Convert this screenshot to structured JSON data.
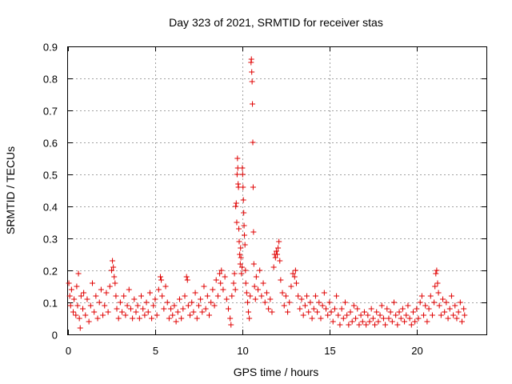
{
  "chart_data": {
    "type": "scatter",
    "title": "Day 323 of 2021, SRMTID for receiver stas",
    "xlabel": "GPS time / hours",
    "ylabel": "SRMTID / TECUs",
    "xlim": [
      0,
      24
    ],
    "ylim": [
      0,
      0.9
    ],
    "xticks": [
      0,
      5,
      10,
      15,
      20
    ],
    "yticks": [
      0,
      0.1,
      0.2,
      0.3,
      0.4,
      0.5,
      0.6,
      0.7,
      0.8,
      0.9
    ],
    "grid": true,
    "marker": "+",
    "color": "#e00000",
    "series": [
      {
        "name": "SRMTID",
        "points": [
          [
            0.05,
            0.16
          ],
          [
            0.1,
            0.12
          ],
          [
            0.15,
            0.09
          ],
          [
            0.2,
            0.14
          ],
          [
            0.3,
            0.07
          ],
          [
            0.35,
            0.11
          ],
          [
            0.45,
            0.06
          ],
          [
            0.5,
            0.15
          ],
          [
            0.55,
            0.09
          ],
          [
            0.6,
            0.19
          ],
          [
            0.65,
            0.05
          ],
          [
            0.7,
            0.02
          ],
          [
            0.75,
            0.12
          ],
          [
            0.85,
            0.08
          ],
          [
            0.9,
            0.13
          ],
          [
            1.0,
            0.06
          ],
          [
            1.1,
            0.11
          ],
          [
            1.2,
            0.04
          ],
          [
            1.3,
            0.09
          ],
          [
            1.4,
            0.16
          ],
          [
            1.5,
            0.07
          ],
          [
            1.6,
            0.12
          ],
          [
            1.7,
            0.05
          ],
          [
            1.8,
            0.1
          ],
          [
            1.9,
            0.14
          ],
          [
            2.0,
            0.06
          ],
          [
            2.1,
            0.09
          ],
          [
            2.2,
            0.13
          ],
          [
            2.3,
            0.07
          ],
          [
            2.4,
            0.15
          ],
          [
            2.5,
            0.2
          ],
          [
            2.55,
            0.23
          ],
          [
            2.6,
            0.21
          ],
          [
            2.65,
            0.18
          ],
          [
            2.7,
            0.16
          ],
          [
            2.75,
            0.12
          ],
          [
            2.8,
            0.08
          ],
          [
            2.9,
            0.05
          ],
          [
            3.0,
            0.1
          ],
          [
            3.1,
            0.07
          ],
          [
            3.2,
            0.12
          ],
          [
            3.3,
            0.06
          ],
          [
            3.4,
            0.09
          ],
          [
            3.5,
            0.14
          ],
          [
            3.6,
            0.08
          ],
          [
            3.7,
            0.05
          ],
          [
            3.8,
            0.11
          ],
          [
            3.9,
            0.07
          ],
          [
            4.0,
            0.09
          ],
          [
            4.1,
            0.05
          ],
          [
            4.2,
            0.12
          ],
          [
            4.3,
            0.08
          ],
          [
            4.4,
            0.06
          ],
          [
            4.5,
            0.1
          ],
          [
            4.6,
            0.07
          ],
          [
            4.7,
            0.13
          ],
          [
            4.8,
            0.05
          ],
          [
            4.9,
            0.09
          ],
          [
            5.0,
            0.11
          ],
          [
            5.1,
            0.06
          ],
          [
            5.2,
            0.14
          ],
          [
            5.3,
            0.18
          ],
          [
            5.35,
            0.17
          ],
          [
            5.4,
            0.12
          ],
          [
            5.5,
            0.08
          ],
          [
            5.6,
            0.15
          ],
          [
            5.7,
            0.1
          ],
          [
            5.8,
            0.05
          ],
          [
            5.9,
            0.08
          ],
          [
            6.0,
            0.06
          ],
          [
            6.1,
            0.09
          ],
          [
            6.2,
            0.04
          ],
          [
            6.3,
            0.07
          ],
          [
            6.4,
            0.11
          ],
          [
            6.5,
            0.05
          ],
          [
            6.6,
            0.08
          ],
          [
            6.7,
            0.12
          ],
          [
            6.8,
            0.18
          ],
          [
            6.85,
            0.17
          ],
          [
            6.9,
            0.09
          ],
          [
            7.0,
            0.06
          ],
          [
            7.1,
            0.1
          ],
          [
            7.2,
            0.07
          ],
          [
            7.3,
            0.13
          ],
          [
            7.4,
            0.05
          ],
          [
            7.5,
            0.09
          ],
          [
            7.6,
            0.11
          ],
          [
            7.7,
            0.07
          ],
          [
            7.8,
            0.15
          ],
          [
            7.9,
            0.08
          ],
          [
            8.0,
            0.12
          ],
          [
            8.1,
            0.06
          ],
          [
            8.2,
            0.1
          ],
          [
            8.3,
            0.14
          ],
          [
            8.4,
            0.09
          ],
          [
            8.5,
            0.17
          ],
          [
            8.6,
            0.12
          ],
          [
            8.7,
            0.19
          ],
          [
            8.75,
            0.16
          ],
          [
            8.8,
            0.2
          ],
          [
            8.9,
            0.14
          ],
          [
            9.0,
            0.18
          ],
          [
            9.1,
            0.11
          ],
          [
            9.2,
            0.08
          ],
          [
            9.3,
            0.05
          ],
          [
            9.35,
            0.03
          ],
          [
            9.4,
            0.12
          ],
          [
            9.5,
            0.16
          ],
          [
            9.55,
            0.19
          ],
          [
            9.6,
            0.14
          ],
          [
            9.62,
            0.4
          ],
          [
            9.65,
            0.41
          ],
          [
            9.68,
            0.35
          ],
          [
            9.7,
            0.5
          ],
          [
            9.72,
            0.55
          ],
          [
            9.74,
            0.52
          ],
          [
            9.76,
            0.47
          ],
          [
            9.78,
            0.46
          ],
          [
            9.8,
            0.33
          ],
          [
            9.82,
            0.29
          ],
          [
            9.85,
            0.25
          ],
          [
            9.88,
            0.22
          ],
          [
            9.9,
            0.27
          ],
          [
            9.92,
            0.24
          ],
          [
            9.95,
            0.19
          ],
          [
            9.98,
            0.21
          ],
          [
            10.0,
            0.52
          ],
          [
            10.02,
            0.5
          ],
          [
            10.04,
            0.46
          ],
          [
            10.06,
            0.42
          ],
          [
            10.08,
            0.38
          ],
          [
            10.1,
            0.34
          ],
          [
            10.12,
            0.31
          ],
          [
            10.15,
            0.28
          ],
          [
            10.18,
            0.2
          ],
          [
            10.2,
            0.16
          ],
          [
            10.25,
            0.13
          ],
          [
            10.3,
            0.1
          ],
          [
            10.35,
            0.07
          ],
          [
            10.4,
            0.05
          ],
          [
            10.45,
            0.12
          ],
          [
            10.5,
            0.85
          ],
          [
            10.52,
            0.86
          ],
          [
            10.54,
            0.82
          ],
          [
            10.56,
            0.79
          ],
          [
            10.58,
            0.72
          ],
          [
            10.6,
            0.6
          ],
          [
            10.62,
            0.46
          ],
          [
            10.64,
            0.32
          ],
          [
            10.66,
            0.22
          ],
          [
            10.7,
            0.15
          ],
          [
            10.75,
            0.11
          ],
          [
            10.8,
            0.18
          ],
          [
            10.9,
            0.14
          ],
          [
            11.0,
            0.2
          ],
          [
            11.1,
            0.12
          ],
          [
            11.2,
            0.16
          ],
          [
            11.3,
            0.1
          ],
          [
            11.4,
            0.13
          ],
          [
            11.5,
            0.08
          ],
          [
            11.6,
            0.11
          ],
          [
            11.7,
            0.07
          ],
          [
            11.8,
            0.21
          ],
          [
            11.85,
            0.25
          ],
          [
            11.9,
            0.24
          ],
          [
            11.95,
            0.26
          ],
          [
            12.0,
            0.25
          ],
          [
            12.05,
            0.27
          ],
          [
            12.1,
            0.29
          ],
          [
            12.15,
            0.23
          ],
          [
            12.2,
            0.17
          ],
          [
            12.3,
            0.13
          ],
          [
            12.4,
            0.09
          ],
          [
            12.5,
            0.12
          ],
          [
            12.6,
            0.07
          ],
          [
            12.7,
            0.1
          ],
          [
            12.8,
            0.15
          ],
          [
            12.9,
            0.19
          ],
          [
            13.0,
            0.18
          ],
          [
            13.05,
            0.2
          ],
          [
            13.1,
            0.16
          ],
          [
            13.2,
            0.12
          ],
          [
            13.3,
            0.08
          ],
          [
            13.4,
            0.11
          ],
          [
            13.5,
            0.06
          ],
          [
            13.6,
            0.09
          ],
          [
            13.7,
            0.12
          ],
          [
            13.8,
            0.07
          ],
          [
            13.9,
            0.1
          ],
          [
            14.0,
            0.05
          ],
          [
            14.1,
            0.08
          ],
          [
            14.2,
            0.12
          ],
          [
            14.3,
            0.07
          ],
          [
            14.4,
            0.1
          ],
          [
            14.5,
            0.05
          ],
          [
            14.6,
            0.09
          ],
          [
            14.7,
            0.13
          ],
          [
            14.8,
            0.08
          ],
          [
            14.9,
            0.06
          ],
          [
            15.0,
            0.1
          ],
          [
            15.1,
            0.07
          ],
          [
            15.2,
            0.04
          ],
          [
            15.3,
            0.08
          ],
          [
            15.4,
            0.12
          ],
          [
            15.5,
            0.06
          ],
          [
            15.6,
            0.03
          ],
          [
            15.7,
            0.08
          ],
          [
            15.8,
            0.05
          ],
          [
            15.9,
            0.1
          ],
          [
            16.0,
            0.06
          ],
          [
            16.1,
            0.03
          ],
          [
            16.2,
            0.07
          ],
          [
            16.3,
            0.04
          ],
          [
            16.4,
            0.09
          ],
          [
            16.5,
            0.05
          ],
          [
            16.6,
            0.08
          ],
          [
            16.7,
            0.03
          ],
          [
            16.8,
            0.06
          ],
          [
            16.9,
            0.04
          ],
          [
            17.0,
            0.07
          ],
          [
            17.1,
            0.03
          ],
          [
            17.2,
            0.06
          ],
          [
            17.3,
            0.04
          ],
          [
            17.4,
            0.08
          ],
          [
            17.5,
            0.05
          ],
          [
            17.6,
            0.03
          ],
          [
            17.7,
            0.07
          ],
          [
            17.8,
            0.04
          ],
          [
            17.9,
            0.06
          ],
          [
            18.0,
            0.09
          ],
          [
            18.1,
            0.05
          ],
          [
            18.2,
            0.03
          ],
          [
            18.3,
            0.08
          ],
          [
            18.4,
            0.05
          ],
          [
            18.5,
            0.07
          ],
          [
            18.6,
            0.04
          ],
          [
            18.7,
            0.1
          ],
          [
            18.8,
            0.06
          ],
          [
            18.9,
            0.03
          ],
          [
            19.0,
            0.07
          ],
          [
            19.1,
            0.05
          ],
          [
            19.2,
            0.08
          ],
          [
            19.3,
            0.04
          ],
          [
            19.4,
            0.06
          ],
          [
            19.5,
            0.09
          ],
          [
            19.6,
            0.05
          ],
          [
            19.7,
            0.03
          ],
          [
            19.8,
            0.07
          ],
          [
            19.9,
            0.04
          ],
          [
            20.0,
            0.08
          ],
          [
            20.1,
            0.05
          ],
          [
            20.2,
            0.1
          ],
          [
            20.3,
            0.12
          ],
          [
            20.4,
            0.06
          ],
          [
            20.5,
            0.09
          ],
          [
            20.6,
            0.04
          ],
          [
            20.7,
            0.08
          ],
          [
            20.8,
            0.12
          ],
          [
            20.9,
            0.06
          ],
          [
            21.0,
            0.1
          ],
          [
            21.05,
            0.15
          ],
          [
            21.1,
            0.19
          ],
          [
            21.15,
            0.2
          ],
          [
            21.2,
            0.16
          ],
          [
            21.25,
            0.13
          ],
          [
            21.3,
            0.09
          ],
          [
            21.4,
            0.06
          ],
          [
            21.5,
            0.11
          ],
          [
            21.6,
            0.07
          ],
          [
            21.7,
            0.1
          ],
          [
            21.8,
            0.05
          ],
          [
            21.9,
            0.08
          ],
          [
            22.0,
            0.12
          ],
          [
            22.1,
            0.06
          ],
          [
            22.2,
            0.09
          ],
          [
            22.3,
            0.05
          ],
          [
            22.4,
            0.07
          ],
          [
            22.5,
            0.1
          ],
          [
            22.6,
            0.04
          ],
          [
            22.7,
            0.08
          ],
          [
            22.75,
            0.06
          ]
        ]
      }
    ]
  }
}
